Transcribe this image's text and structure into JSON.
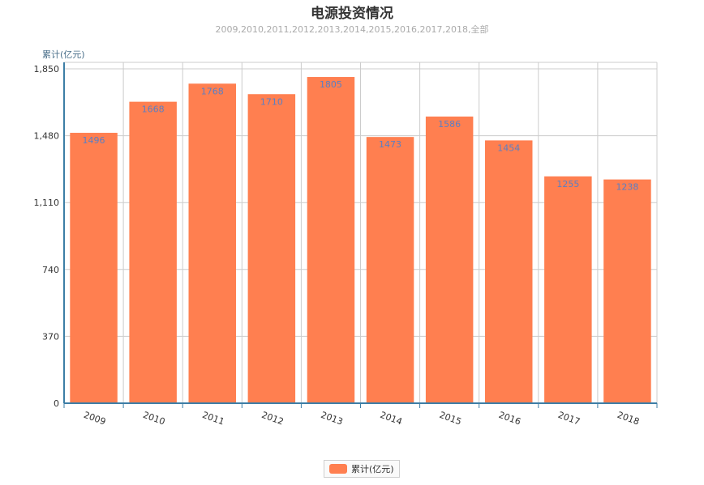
{
  "colors": {
    "bar": "#ff7f50",
    "bar_label": "#5b7fc4",
    "axis": "#3d7ea6",
    "grid": "#cccccc",
    "tick_text": "#333333",
    "xtick_text": "#333333"
  },
  "chart_data": {
    "type": "bar",
    "title": "电源投资情况",
    "subtitle": "2009,2010,2011,2012,2013,2014,2015,2016,2017,2018,全部",
    "ylabel": "累计(亿元)",
    "xlabel": "",
    "categories": [
      "2009",
      "2010",
      "2011",
      "2012",
      "2013",
      "2014",
      "2015",
      "2016",
      "2017",
      "2018"
    ],
    "series": [
      {
        "name": "累计(亿元)",
        "values": [
          1496,
          1668,
          1768,
          1710,
          1805,
          1473,
          1586,
          1454,
          1255,
          1238
        ]
      }
    ],
    "ylim": [
      0,
      1850
    ],
    "yticks": [
      0,
      370,
      740,
      1110,
      1480,
      1850
    ],
    "ytick_labels": [
      "0",
      "370",
      "740",
      "1,110",
      "1,480",
      "1,850"
    ],
    "grid": true,
    "legend_position": "bottom-center"
  }
}
